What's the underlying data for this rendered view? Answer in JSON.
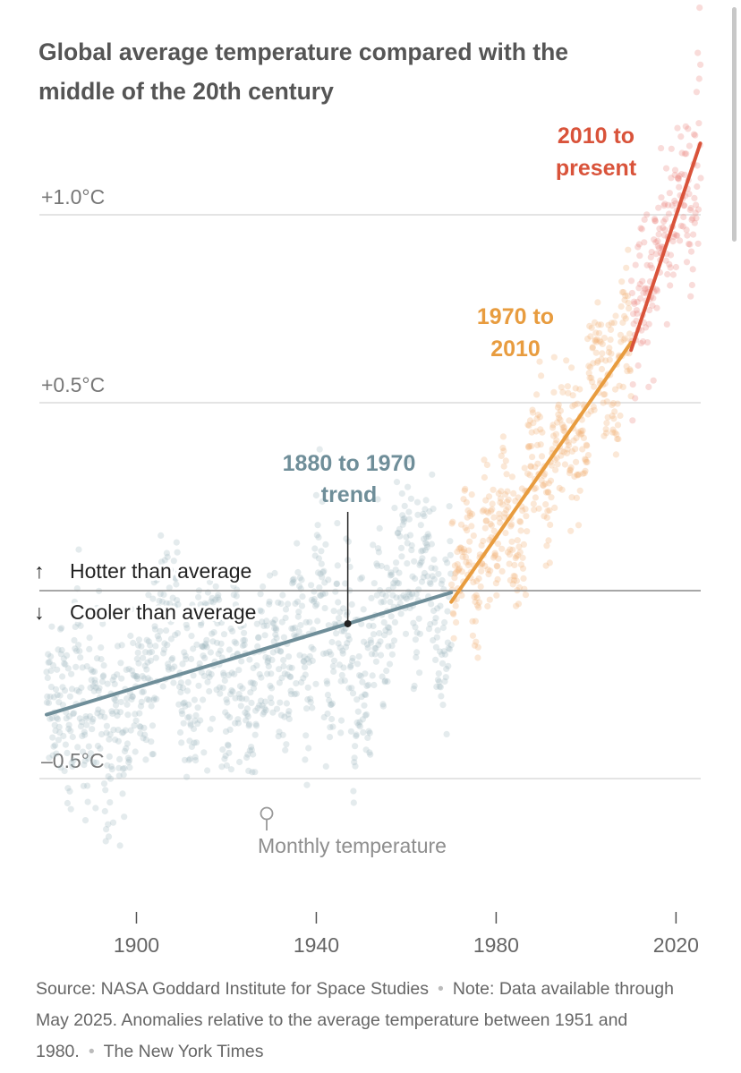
{
  "chart_data": {
    "type": "scatter",
    "title": "Global average temperature compared with the middle of the 20th century",
    "xlim": [
      1880,
      2025.5
    ],
    "ylim": [
      -0.85,
      1.48
    ],
    "x_ticks": [
      1900,
      1940,
      1980,
      2020
    ],
    "x_tick_labels": [
      "1900",
      "1940",
      "1980",
      "2020"
    ],
    "y_gridlines": [
      1.0,
      0.5,
      -0.5
    ],
    "y_tick_labels": [
      "+1.0°C",
      "+0.5°C",
      "–0.5°C"
    ],
    "zero_line": 0,
    "grid": true,
    "hotter_label": "Hotter than average",
    "cooler_label": "Cooler than average",
    "hotter_arrow": "↑",
    "cooler_arrow": "↓",
    "scatter_label": "Monthly temperature",
    "trends": [
      {
        "label": [
          "1880 to 1970",
          "trend"
        ],
        "color": "#6f8e99",
        "x": [
          1880,
          1970
        ],
        "y": [
          -0.33,
          -0.005
        ]
      },
      {
        "label": [
          "1970 to",
          "2010"
        ],
        "color": "#e89c3f",
        "x": [
          1970,
          2010
        ],
        "y": [
          -0.03,
          0.66
        ]
      },
      {
        "label": [
          "2010 to",
          "present"
        ],
        "color": "#d9533a",
        "x": [
          2010,
          2025.4
        ],
        "y": [
          0.64,
          1.19
        ]
      }
    ],
    "scatter_series": [
      {
        "name": "1880-1969",
        "color": "#9fb8bf",
        "x": [
          1880,
          1970
        ]
      },
      {
        "name": "1970-2009",
        "color": "#f2b479",
        "x": [
          1970,
          2010
        ]
      },
      {
        "name": "2010-2025",
        "color": "#ec8a86",
        "x": [
          2010,
          2025.4
        ]
      }
    ]
  },
  "title": "Global average temperature compared with the middle of the 20th century",
  "footer": {
    "source": "Source: NASA Goddard Institute for Space Studies",
    "note": "Note: Data available through May 2025. Anomalies relative to the average temperature between 1951 and 1980.",
    "credit": "The New York Times",
    "separator": "•"
  }
}
